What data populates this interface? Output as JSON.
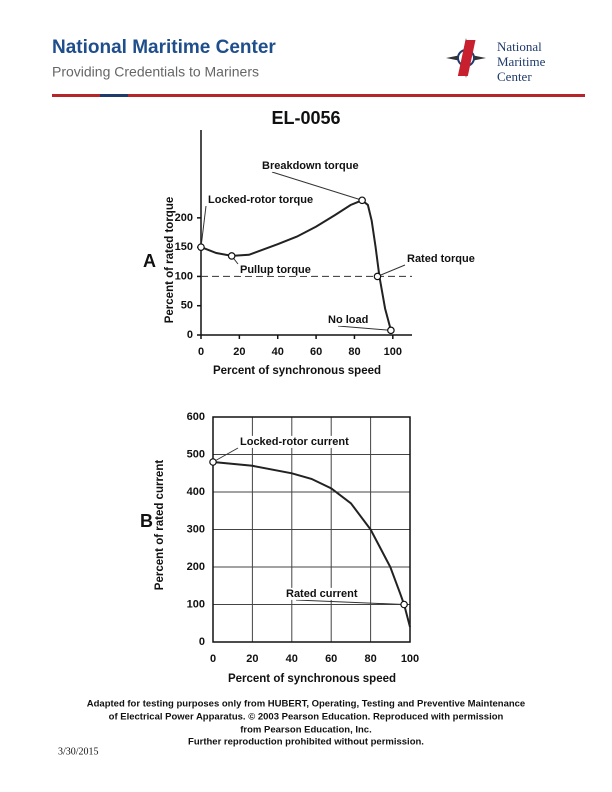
{
  "header": {
    "title": "National Maritime Center",
    "subtitle": "Providing Credentials to Mariners",
    "logo_text": [
      "National",
      "Maritime",
      "Center"
    ]
  },
  "question_id": "EL-0056",
  "chart_data": [
    {
      "type": "line",
      "panel_label": "A",
      "x_label": "Percent of synchronous speed",
      "y_label": "Percent of rated torque",
      "x": [
        0,
        8,
        16,
        25,
        40,
        50,
        60,
        70,
        78,
        84,
        87,
        89,
        91,
        93,
        96,
        99
      ],
      "values": [
        150,
        140,
        135,
        137,
        155,
        168,
        185,
        205,
        222,
        230,
        222,
        195,
        150,
        100,
        45,
        8
      ],
      "color": "#222",
      "points": {
        "labels": [
          "Locked-rotor torque",
          "Pullup torque",
          "Breakdown torque",
          "Rated torque",
          "No load"
        ],
        "x": [
          0,
          16,
          84,
          92,
          99
        ],
        "values": [
          150,
          135,
          230,
          100,
          8
        ]
      },
      "reference_line": 100,
      "xlim": [
        0,
        110
      ],
      "ylim": [
        0,
        350
      ],
      "xticks": [
        0,
        20,
        40,
        60,
        80,
        100
      ],
      "yticks": [
        0,
        50,
        100,
        150,
        200
      ],
      "grid": false
    },
    {
      "type": "line",
      "panel_label": "B",
      "x_label": "Percent of synchronous speed",
      "y_label": "Percent of rated current",
      "x": [
        0,
        20,
        40,
        50,
        60,
        70,
        80,
        90,
        95,
        97,
        100
      ],
      "values": [
        480,
        470,
        450,
        435,
        410,
        370,
        300,
        200,
        130,
        100,
        40
      ],
      "color": "#222",
      "points": {
        "labels": [
          "Locked-rotor current",
          "Rated current"
        ],
        "x": [
          0,
          97
        ],
        "values": [
          480,
          100
        ]
      },
      "xlim": [
        0,
        100
      ],
      "ylim": [
        0,
        600
      ],
      "xticks": [
        0,
        20,
        40,
        60,
        80,
        100
      ],
      "yticks": [
        0,
        100,
        200,
        300,
        400,
        500,
        600
      ],
      "grid": true
    }
  ],
  "footer": {
    "lines": [
      "Adapted for testing purposes only from HUBERT, Operating, Testing and Preventive Maintenance",
      "of Electrical Power Apparatus. © 2003 Pearson Education. Reproduced with permission",
      "from Pearson Education, Inc.",
      "Further reproduction prohibited without permission."
    ],
    "date": "3/30/2015"
  }
}
